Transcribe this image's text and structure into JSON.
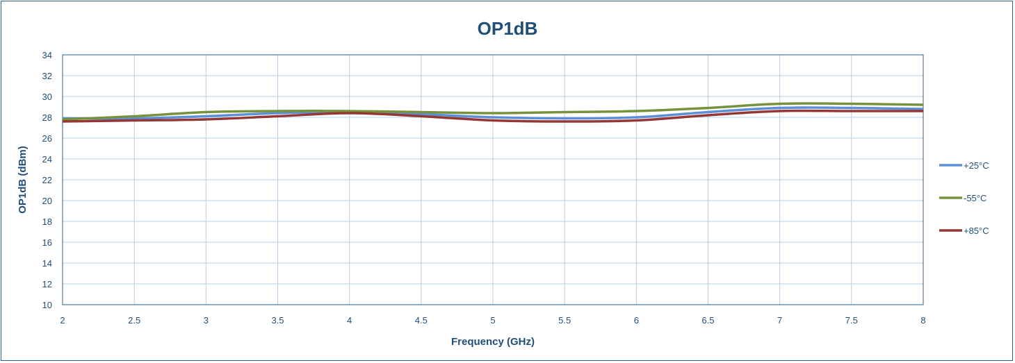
{
  "chart_data": {
    "type": "line",
    "title": "OP1dB",
    "xlabel": "Frequency (GHz)",
    "ylabel": "OP1dB (dBm)",
    "xlim": [
      2,
      8
    ],
    "ylim": [
      10,
      34
    ],
    "x_ticks": [
      "2",
      "2.5",
      "3",
      "3.5",
      "4",
      "4.5",
      "5",
      "5.5",
      "6",
      "6.5",
      "7",
      "7.5",
      "8"
    ],
    "y_ticks": [
      "10",
      "12",
      "14",
      "16",
      "18",
      "20",
      "22",
      "24",
      "26",
      "28",
      "30",
      "32",
      "34"
    ],
    "grid": true,
    "legend_position": "right",
    "x": [
      2,
      2.5,
      3,
      3.5,
      4,
      4.5,
      5,
      5.5,
      6,
      6.5,
      7,
      7.5,
      8
    ],
    "series": [
      {
        "name": "+25°C",
        "color": "#5b8fd6",
        "values": [
          27.9,
          27.9,
          28.1,
          28.4,
          28.5,
          28.3,
          28.0,
          27.9,
          28.0,
          28.5,
          28.9,
          28.9,
          28.8
        ]
      },
      {
        "name": "-55°C",
        "color": "#76923c",
        "values": [
          27.8,
          28.1,
          28.5,
          28.6,
          28.6,
          28.5,
          28.4,
          28.5,
          28.6,
          28.9,
          29.3,
          29.3,
          29.2
        ]
      },
      {
        "name": "+85°C",
        "color": "#953735",
        "values": [
          27.6,
          27.7,
          27.8,
          28.1,
          28.4,
          28.1,
          27.7,
          27.6,
          27.7,
          28.2,
          28.6,
          28.6,
          28.6
        ]
      }
    ]
  }
}
